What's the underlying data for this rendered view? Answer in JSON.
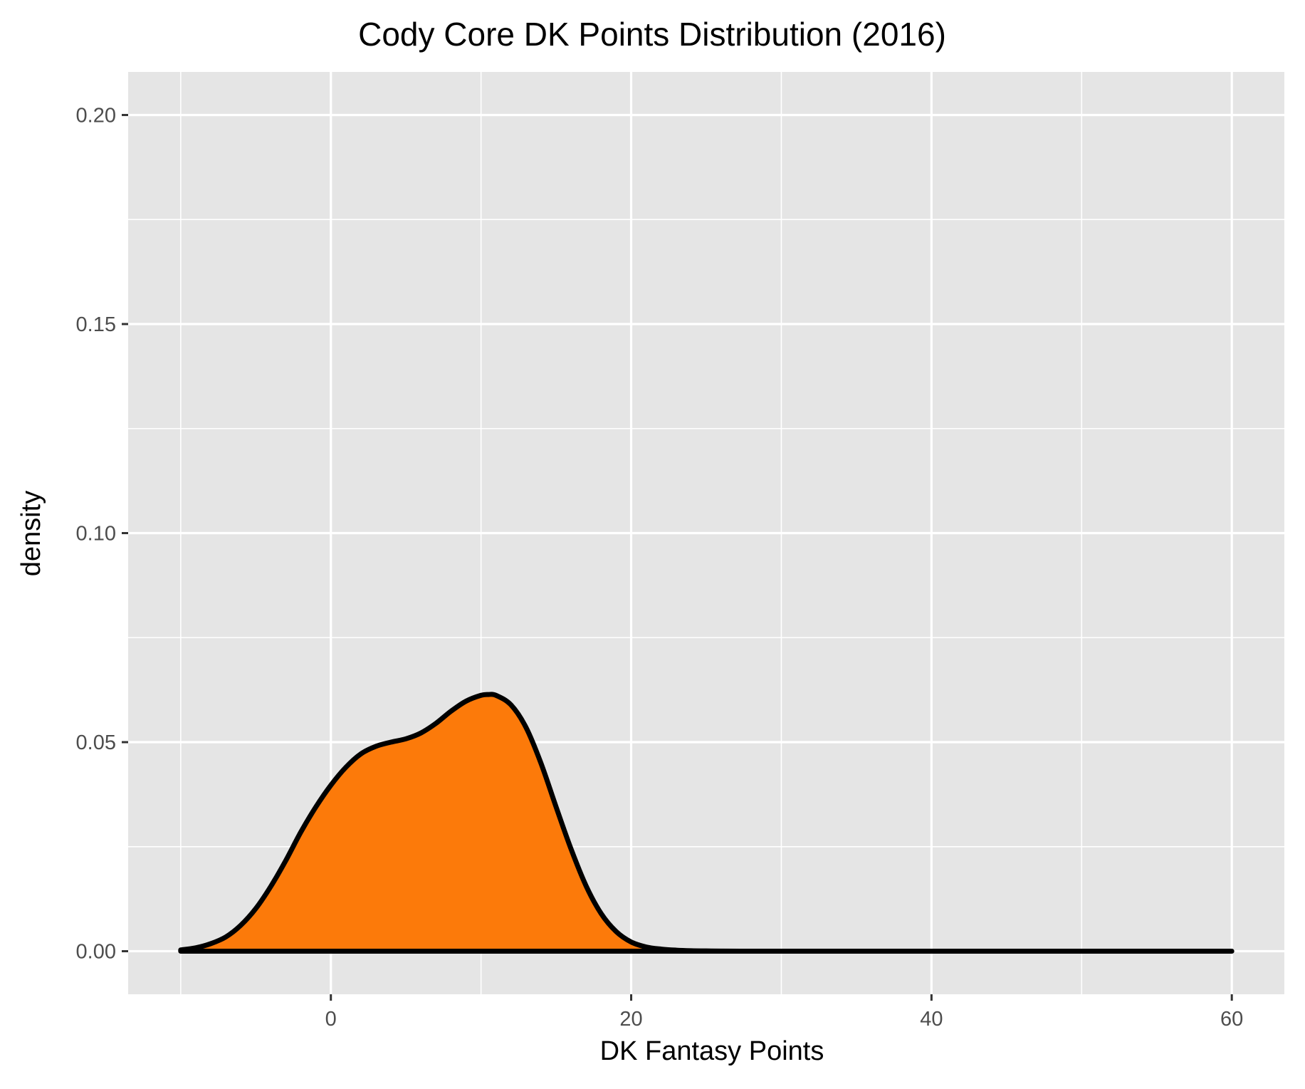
{
  "chart_data": {
    "type": "area",
    "title": "Cody Core DK Points Distribution (2016)",
    "xlabel": "DK Fantasy Points",
    "ylabel": "density",
    "xlim": [
      -13.5,
      63.5
    ],
    "ylim": [
      -0.0103,
      0.2103
    ],
    "x_ticks": [
      {
        "value": 0,
        "label": "0"
      },
      {
        "value": 20,
        "label": "20"
      },
      {
        "value": 40,
        "label": "40"
      },
      {
        "value": 60,
        "label": "60"
      }
    ],
    "x_minor_ticks": [
      -10,
      10,
      30,
      50
    ],
    "y_ticks": [
      {
        "value": 0.0,
        "label": "0.00"
      },
      {
        "value": 0.05,
        "label": "0.05"
      },
      {
        "value": 0.1,
        "label": "0.10"
      },
      {
        "value": 0.15,
        "label": "0.15"
      },
      {
        "value": 0.2,
        "label": "0.20"
      }
    ],
    "y_minor_ticks": [
      0.025,
      0.075,
      0.125,
      0.175
    ],
    "grid": true,
    "fill_color": "#fc7a0a",
    "line_color": "#000000",
    "panel_color": "#e5e5e5",
    "grid_color": "#ffffff",
    "series": [
      {
        "x": [
          -10,
          -9,
          -8,
          -7,
          -6,
          -5,
          -4,
          -3,
          -2,
          -1,
          0,
          1,
          2,
          3,
          4,
          5,
          6,
          7,
          8,
          9,
          10,
          10.5,
          11,
          12,
          13,
          14,
          15,
          16,
          17,
          18,
          19,
          20,
          21,
          22,
          23,
          24,
          25,
          26,
          28,
          30,
          35,
          40,
          45,
          50,
          55,
          60
        ],
        "y": [
          0.0003,
          0.0008,
          0.0018,
          0.0034,
          0.0062,
          0.0102,
          0.0155,
          0.0217,
          0.0285,
          0.0345,
          0.0397,
          0.044,
          0.0472,
          0.049,
          0.05,
          0.0508,
          0.0522,
          0.0545,
          0.0574,
          0.0598,
          0.0612,
          0.0614,
          0.0612,
          0.0589,
          0.0535,
          0.0449,
          0.0345,
          0.0244,
          0.0156,
          0.009,
          0.0047,
          0.0022,
          0.001,
          0.0005,
          0.00025,
          0.00012,
          6e-05,
          3e-05,
          1e-05,
          5e-06,
          0,
          0,
          0,
          0,
          0,
          0
        ]
      }
    ]
  }
}
